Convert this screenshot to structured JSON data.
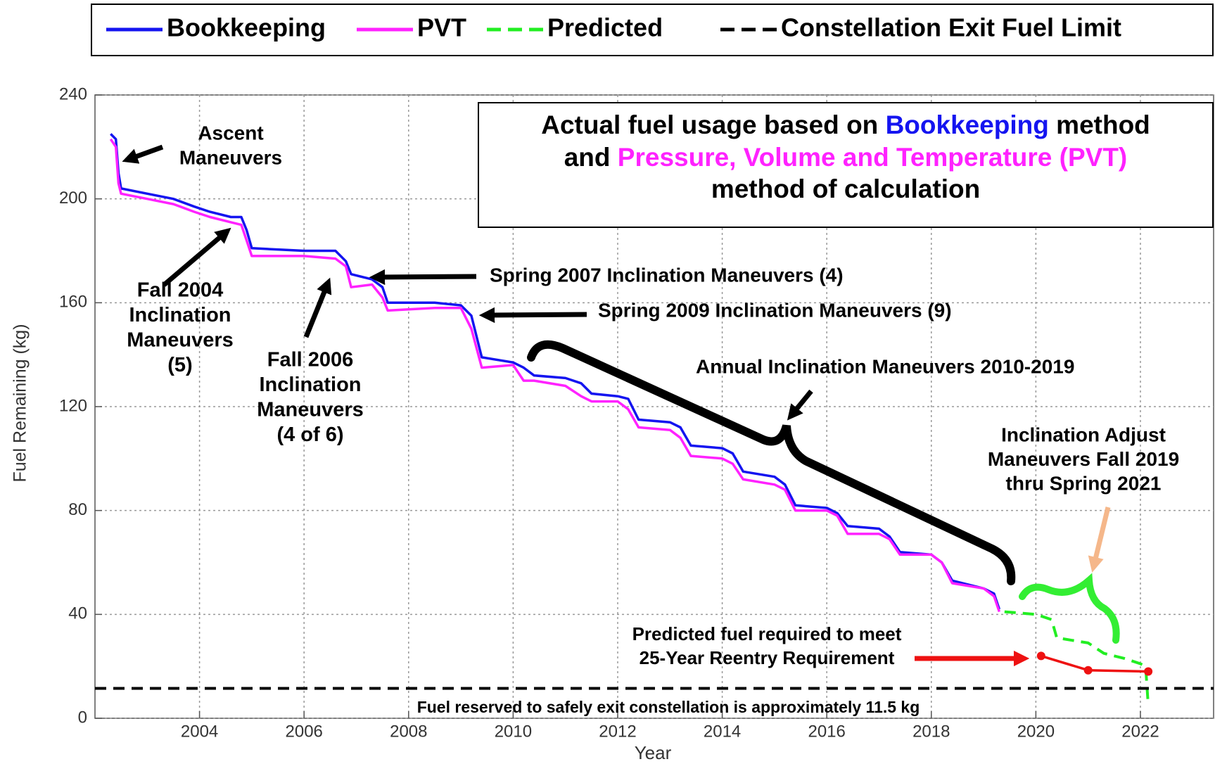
{
  "chart_data": {
    "type": "line",
    "xlabel": "Year",
    "ylabel": "Fuel Remaining (kg)",
    "xlim": [
      2002,
      2023.4
    ],
    "ylim": [
      0,
      240
    ],
    "xticks": [
      2004,
      2006,
      2008,
      2010,
      2012,
      2014,
      2016,
      2018,
      2020,
      2022
    ],
    "yticks": [
      0,
      40,
      80,
      120,
      160,
      200,
      240
    ],
    "grid": true,
    "legend": "top",
    "series": [
      {
        "name": "Bookkeeping",
        "color": "#1414f0",
        "x": [
          2002.3,
          2002.4,
          2002.45,
          2002.5,
          2003.0,
          2003.5,
          2003.9,
          2004.2,
          2004.6,
          2004.8,
          2004.9,
          2005.0,
          2006.0,
          2006.6,
          2006.8,
          2006.9,
          2007.3,
          2007.5,
          2007.6,
          2008.5,
          2009.0,
          2009.2,
          2009.4,
          2010.0,
          2010.2,
          2010.4,
          2011.0,
          2011.3,
          2011.5,
          2012.0,
          2012.2,
          2012.4,
          2013.0,
          2013.2,
          2013.4,
          2014.0,
          2014.2,
          2014.4,
          2015.0,
          2015.2,
          2015.4,
          2016.0,
          2016.2,
          2016.4,
          2017.0,
          2017.2,
          2017.4,
          2018.0,
          2018.2,
          2018.4,
          2019.0,
          2019.2,
          2019.3
        ],
        "values": [
          225,
          223,
          210,
          204,
          202,
          200,
          197,
          195,
          193,
          193,
          188,
          181,
          180,
          180,
          176,
          171,
          169,
          166,
          160,
          160,
          159,
          155,
          139,
          137,
          135,
          132,
          131,
          129,
          125,
          124,
          123,
          115,
          114,
          112,
          105,
          104,
          102,
          95,
          93,
          90,
          82,
          81,
          79,
          74,
          73,
          70,
          64,
          63,
          60,
          53,
          50,
          48,
          42
        ]
      },
      {
        "name": "PVT",
        "color": "#ff22ff",
        "x": [
          2002.3,
          2002.4,
          2002.45,
          2002.5,
          2003.0,
          2003.5,
          2003.9,
          2004.2,
          2004.6,
          2004.8,
          2004.9,
          2005.0,
          2006.0,
          2006.6,
          2006.8,
          2006.9,
          2007.3,
          2007.5,
          2007.6,
          2008.5,
          2009.0,
          2009.2,
          2009.4,
          2010.0,
          2010.2,
          2010.4,
          2011.0,
          2011.3,
          2011.5,
          2012.0,
          2012.2,
          2012.4,
          2013.0,
          2013.2,
          2013.4,
          2014.0,
          2014.2,
          2014.4,
          2015.0,
          2015.2,
          2015.4,
          2016.0,
          2016.2,
          2016.4,
          2017.0,
          2017.2,
          2017.4,
          2018.0,
          2018.2,
          2018.4,
          2019.0,
          2019.2,
          2019.3
        ],
        "values": [
          223,
          220,
          206,
          202,
          200,
          198,
          195,
          193,
          191,
          190,
          184,
          178,
          178,
          177,
          174,
          166,
          167,
          162,
          157,
          158,
          158,
          150,
          135,
          136,
          130,
          130,
          128,
          124,
          122,
          122,
          119,
          112,
          111,
          108,
          101,
          100,
          98,
          92,
          90,
          88,
          80,
          80,
          78,
          71,
          71,
          69,
          63,
          63,
          60,
          52,
          50,
          47,
          41
        ]
      },
      {
        "name": "Predicted",
        "color": "#22ee22",
        "dashed": true,
        "x": [
          2019.4,
          2020.0,
          2020.3,
          2020.4,
          2021.0,
          2021.3,
          2021.7,
          2022.0,
          2022.1,
          2022.15
        ],
        "values": [
          41,
          40,
          38,
          31,
          29,
          25,
          23,
          21,
          20,
          5
        ]
      },
      {
        "name": "Constellation Exit Fuel Limit",
        "color": "#000000",
        "dashed": true,
        "value": 11.5
      }
    ],
    "reentry_line": {
      "color": "#ee1111",
      "markers": true,
      "x": [
        2020.1,
        2021.0,
        2022.15
      ],
      "values": [
        24,
        18.5,
        18
      ]
    },
    "title_box": [
      [
        {
          "text": "Actual fuel usage based on "
        },
        {
          "text": "Bookkeeping",
          "color": "#1414f0"
        },
        {
          "text": " method"
        }
      ],
      [
        {
          "text": "and "
        },
        {
          "text": "Pressure, Volume and Temperature (PVT)",
          "color": "#ff22ff"
        }
      ],
      [
        {
          "text": "method of calculation"
        }
      ]
    ],
    "annotations": [
      {
        "lines": [
          "Ascent",
          "Maneuvers"
        ]
      },
      {
        "lines": [
          "Fall 2004",
          "Inclination",
          "Maneuvers",
          "(5)"
        ]
      },
      {
        "lines": [
          "Fall 2006",
          "Inclination",
          "Maneuvers",
          "(4 of 6)"
        ]
      },
      {
        "lines": [
          "Spring 2007 Inclination Maneuvers (4)"
        ]
      },
      {
        "lines": [
          "Spring 2009 Inclination Maneuvers (9)"
        ]
      },
      {
        "lines": [
          "Annual Inclination Maneuvers 2010-2019"
        ]
      },
      {
        "lines": [
          "Inclination Adjust",
          "Maneuvers Fall 2019",
          "thru Spring 2021"
        ],
        "color": "#33ee33"
      },
      {
        "lines": [
          "Predicted fuel required to meet",
          "25-Year Reentry Requirement"
        ],
        "color": "#ee1111"
      },
      {
        "lines": [
          "Fuel reserved to safely exit constellation is approximately 11.5 kg"
        ]
      }
    ]
  }
}
